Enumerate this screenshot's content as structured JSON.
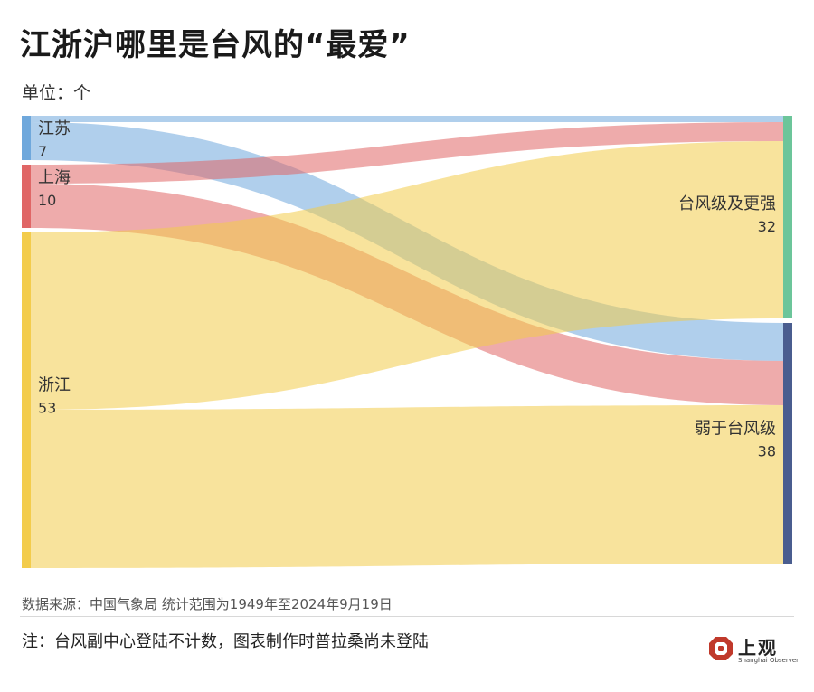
{
  "title": "江浙沪哪里是台风的“最爱”",
  "unit": "单位：个",
  "source": "数据来源：中国气象局 统计范围为1949年至2024年9月19日",
  "note": "注：台风副中心登陆不计数，图表制作时普拉桑尚未登陆",
  "logo": {
    "cn": "上观",
    "en": "Shanghai Observer",
    "mark": "logo-icon"
  },
  "colors": {
    "江苏": "#6fa8dc",
    "上海": "#e06666",
    "浙江": "#f3cc4b",
    "台风级及更强": "#6cc59a",
    "弱于台风级": "#4a5d8f"
  },
  "chart_data": {
    "type": "sankey",
    "title": "江浙沪哪里是台风的“最爱”",
    "unit": "单位：个",
    "sources": [
      {
        "name": "江苏",
        "value": 7
      },
      {
        "name": "上海",
        "value": 10
      },
      {
        "name": "浙江",
        "value": 53
      }
    ],
    "targets": [
      {
        "name": "台风级及更强",
        "value": 32
      },
      {
        "name": "弱于台风级",
        "value": 38
      }
    ],
    "links": [
      {
        "source": "江苏",
        "target": "台风级及更强",
        "value": 1
      },
      {
        "source": "江苏",
        "target": "弱于台风级",
        "value": 6
      },
      {
        "source": "上海",
        "target": "台风级及更强",
        "value": 3
      },
      {
        "source": "上海",
        "target": "弱于台风级",
        "value": 7
      },
      {
        "source": "浙江",
        "target": "台风级及更强",
        "value": 28
      },
      {
        "source": "浙江",
        "target": "弱于台风级",
        "value": 25
      }
    ]
  }
}
